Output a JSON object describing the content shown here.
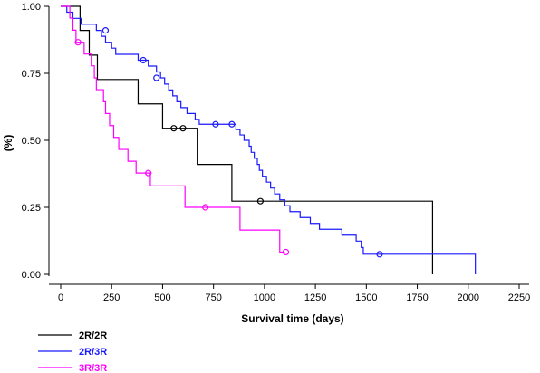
{
  "chart_data": {
    "type": "line",
    "subtype": "kaplan-meier step",
    "xlabel": "Survival time (days)",
    "ylabel": "(%)",
    "xlim": [
      0,
      2250
    ],
    "ylim": [
      0,
      1
    ],
    "x_ticks": [
      "0",
      "250",
      "500",
      "750",
      "1000",
      "1250",
      "1500",
      "1750",
      "2000",
      "2250"
    ],
    "y_ticks": [
      "0.00",
      "0.25",
      "0.50",
      "0.75",
      "1.00"
    ],
    "grid": false,
    "legend_position": "bottom-left",
    "series": [
      {
        "name": "2R/2R",
        "color": "#000000",
        "steps": [
          [
            0,
            1.0
          ],
          [
            95,
            0.91
          ],
          [
            140,
            0.818
          ],
          [
            180,
            0.727
          ],
          [
            380,
            0.636
          ],
          [
            500,
            0.545
          ],
          [
            670,
            0.41
          ],
          [
            840,
            0.273
          ],
          [
            1825,
            0.0
          ]
        ],
        "censored": [
          [
            555,
            0.545
          ],
          [
            600,
            0.545
          ],
          [
            980,
            0.273
          ]
        ]
      },
      {
        "name": "2R/3R",
        "color": "#1a1aff",
        "steps": [
          [
            0,
            1.0
          ],
          [
            30,
            0.978
          ],
          [
            60,
            0.955
          ],
          [
            100,
            0.933
          ],
          [
            175,
            0.91
          ],
          [
            200,
            0.888
          ],
          [
            220,
            0.866
          ],
          [
            250,
            0.844
          ],
          [
            270,
            0.821
          ],
          [
            380,
            0.799
          ],
          [
            430,
            0.777
          ],
          [
            470,
            0.755
          ],
          [
            490,
            0.733
          ],
          [
            510,
            0.71
          ],
          [
            530,
            0.688
          ],
          [
            550,
            0.666
          ],
          [
            570,
            0.644
          ],
          [
            590,
            0.622
          ],
          [
            620,
            0.6
          ],
          [
            660,
            0.578
          ],
          [
            680,
            0.56
          ],
          [
            860,
            0.54
          ],
          [
            880,
            0.52
          ],
          [
            900,
            0.5
          ],
          [
            925,
            0.478
          ],
          [
            935,
            0.455
          ],
          [
            950,
            0.433
          ],
          [
            965,
            0.41
          ],
          [
            975,
            0.388
          ],
          [
            990,
            0.366
          ],
          [
            1010,
            0.344
          ],
          [
            1030,
            0.322
          ],
          [
            1050,
            0.3
          ],
          [
            1075,
            0.278
          ],
          [
            1100,
            0.256
          ],
          [
            1125,
            0.234
          ],
          [
            1175,
            0.212
          ],
          [
            1225,
            0.19
          ],
          [
            1270,
            0.168
          ],
          [
            1380,
            0.146
          ],
          [
            1450,
            0.124
          ],
          [
            1475,
            0.1
          ],
          [
            1485,
            0.075
          ],
          [
            2035,
            0.0
          ]
        ],
        "censored": [
          [
            220,
            0.91
          ],
          [
            405,
            0.799
          ],
          [
            470,
            0.733
          ],
          [
            760,
            0.56
          ],
          [
            840,
            0.56
          ],
          [
            1565,
            0.075
          ]
        ]
      },
      {
        "name": "3R/3R",
        "color": "#ff00ff",
        "steps": [
          [
            0,
            1.0
          ],
          [
            45,
            0.956
          ],
          [
            60,
            0.911
          ],
          [
            75,
            0.866
          ],
          [
            115,
            0.822
          ],
          [
            150,
            0.778
          ],
          [
            165,
            0.733
          ],
          [
            175,
            0.689
          ],
          [
            210,
            0.644
          ],
          [
            220,
            0.6
          ],
          [
            240,
            0.555
          ],
          [
            260,
            0.511
          ],
          [
            285,
            0.466
          ],
          [
            330,
            0.422
          ],
          [
            370,
            0.378
          ],
          [
            440,
            0.33
          ],
          [
            610,
            0.25
          ],
          [
            880,
            0.165
          ],
          [
            1075,
            0.083
          ],
          [
            1100,
            0.083
          ]
        ],
        "censored": [
          [
            85,
            0.866
          ],
          [
            430,
            0.378
          ],
          [
            710,
            0.25
          ],
          [
            1105,
            0.083
          ]
        ]
      }
    ]
  }
}
